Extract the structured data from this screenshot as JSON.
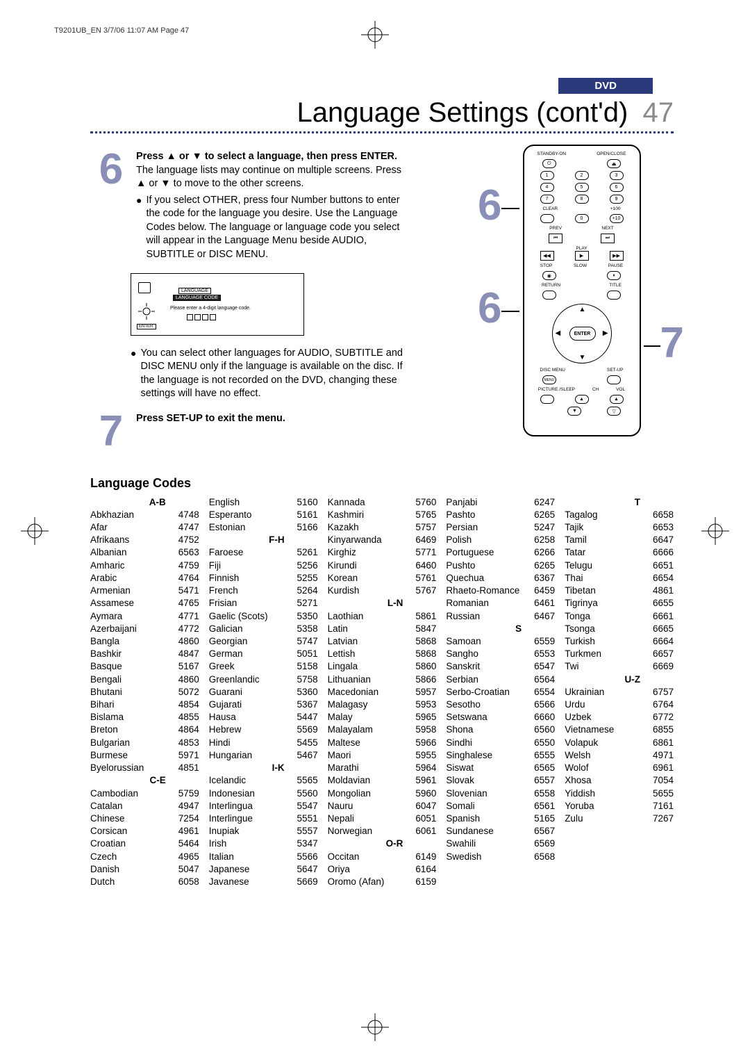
{
  "pageRef": "T9201UB_EN  3/7/06  11:07 AM  Page 47",
  "badge": "DVD",
  "title": "Language Settings (cont'd)",
  "pageNum": "47",
  "step6": {
    "num": "6",
    "lead_b": "Press ▲ or ▼ to select a language, then press ENTER.",
    "lead_rest": " The language lists may continue on multiple screens.  Press ▲ or ▼ to move to the other screens.",
    "bullet1": "If you select OTHER, press four Number buttons to enter the code for the language you desire. Use the Language Codes below.  The language or language code you select will appear in the Language Menu beside AUDIO, SUBTITLE or DISC MENU.",
    "diag_l1": "LANGUAGE",
    "diag_l2": "LANGUAGE CODE",
    "diag_instr": "Please enter a 4-digit language code.",
    "bullet2": "You can select other languages for AUDIO, SUBTITLE and DISC MENU only if the language is available on the disc.  If the language is not recorded on the DVD, changing these settings will have no effect."
  },
  "step7": {
    "num": "7",
    "text": "Press SET-UP to exit the menu."
  },
  "remote": {
    "r6": "6",
    "r7": "7",
    "standby": "STANDBY-ON",
    "openclose": "OPEN/CLOSE",
    "clear": "CLEAR",
    "plus100": "+100",
    "prev": "PREV",
    "next": "NEXT",
    "play": "PLAY",
    "stop": "STOP",
    "slow": "SLOW",
    "pause": "PAUSE",
    "return": "RETURN",
    "title": "TITLE",
    "enter": "ENTER",
    "disc": "DISC MENU",
    "setup": "SET-UP",
    "picture": "PICTURE /SLEEP",
    "ch": "CH",
    "vol": "VOL",
    "n1": "1",
    "n2": "2",
    "n3": "3",
    "n4": "4",
    "n5": "5",
    "n6": "6",
    "n7": "7",
    "n8": "8",
    "n9": "9",
    "n0": "0",
    "n10": "+10"
  },
  "codesTitle": "Language Codes",
  "cols": [
    {
      "sections": [
        {
          "hdr": "A-B",
          "rows": [
            [
              "Abkhazian",
              "4748"
            ],
            [
              "Afar",
              "4747"
            ],
            [
              "Afrikaans",
              "4752"
            ],
            [
              "Albanian",
              "6563"
            ],
            [
              "Amharic",
              "4759"
            ],
            [
              "Arabic",
              "4764"
            ],
            [
              "Armenian",
              "5471"
            ],
            [
              "Assamese",
              "4765"
            ],
            [
              "Aymara",
              "4771"
            ],
            [
              "Azerbaijani",
              "4772"
            ],
            [
              "Bangla",
              "4860"
            ],
            [
              "Bashkir",
              "4847"
            ],
            [
              "Basque",
              "5167"
            ],
            [
              "Bengali",
              "4860"
            ],
            [
              "Bhutani",
              "5072"
            ],
            [
              "Bihari",
              "4854"
            ],
            [
              "Bislama",
              "4855"
            ],
            [
              "Breton",
              "4864"
            ],
            [
              "Bulgarian",
              "4853"
            ],
            [
              "Burmese",
              "5971"
            ],
            [
              "Byelorussian",
              "4851"
            ]
          ]
        },
        {
          "hdr": "C-E",
          "rows": [
            [
              "Cambodian",
              "5759"
            ],
            [
              "Catalan",
              "4947"
            ],
            [
              "Chinese",
              "7254"
            ],
            [
              "Corsican",
              "4961"
            ],
            [
              "Croatian",
              "5464"
            ],
            [
              "Czech",
              "4965"
            ],
            [
              "Danish",
              "5047"
            ],
            [
              "Dutch",
              "6058"
            ]
          ]
        }
      ]
    },
    {
      "sections": [
        {
          "hdr": "",
          "rows": [
            [
              "English",
              "5160"
            ],
            [
              "Esperanto",
              "5161"
            ],
            [
              "Estonian",
              "5166"
            ]
          ]
        },
        {
          "hdr": "F-H",
          "rows": [
            [
              "Faroese",
              "5261"
            ],
            [
              "Fiji",
              "5256"
            ],
            [
              "Finnish",
              "5255"
            ],
            [
              "French",
              "5264"
            ],
            [
              "Frisian",
              "5271"
            ],
            [
              "Gaelic (Scots)",
              "5350"
            ],
            [
              "Galician",
              "5358"
            ],
            [
              "Georgian",
              "5747"
            ],
            [
              "German",
              "5051"
            ],
            [
              "Greek",
              "5158"
            ],
            [
              "Greenlandic",
              "5758"
            ],
            [
              "Guarani",
              "5360"
            ],
            [
              "Gujarati",
              "5367"
            ],
            [
              "Hausa",
              "5447"
            ],
            [
              "Hebrew",
              "5569"
            ],
            [
              "Hindi",
              "5455"
            ],
            [
              "Hungarian",
              "5467"
            ]
          ]
        },
        {
          "hdr": "I-K",
          "rows": [
            [
              "Icelandic",
              "5565"
            ],
            [
              "Indonesian",
              "5560"
            ],
            [
              "Interlingua",
              "5547"
            ],
            [
              "Interlingue",
              "5551"
            ],
            [
              "Inupiak",
              "5557"
            ],
            [
              "Irish",
              "5347"
            ],
            [
              "Italian",
              "5566"
            ],
            [
              "Japanese",
              "5647"
            ],
            [
              "Javanese",
              "5669"
            ]
          ]
        }
      ]
    },
    {
      "sections": [
        {
          "hdr": "",
          "rows": [
            [
              "Kannada",
              "5760"
            ],
            [
              "Kashmiri",
              "5765"
            ],
            [
              "Kazakh",
              "5757"
            ],
            [
              "Kinyarwanda",
              "6469"
            ],
            [
              "Kirghiz",
              "5771"
            ],
            [
              "Kirundi",
              "6460"
            ],
            [
              "Korean",
              "5761"
            ],
            [
              "Kurdish",
              "5767"
            ]
          ]
        },
        {
          "hdr": "L-N",
          "rows": [
            [
              "Laothian",
              "5861"
            ],
            [
              "Latin",
              "5847"
            ],
            [
              "Latvian",
              "5868"
            ],
            [
              "Lettish",
              "5868"
            ],
            [
              "Lingala",
              "5860"
            ],
            [
              "Lithuanian",
              "5866"
            ],
            [
              "Macedonian",
              "5957"
            ],
            [
              "Malagasy",
              "5953"
            ],
            [
              "Malay",
              "5965"
            ],
            [
              "Malayalam",
              "5958"
            ],
            [
              "Maltese",
              "5966"
            ],
            [
              "Maori",
              "5955"
            ],
            [
              "Marathi",
              "5964"
            ],
            [
              "Moldavian",
              "5961"
            ],
            [
              "Mongolian",
              "5960"
            ],
            [
              "Nauru",
              "6047"
            ],
            [
              "Nepali",
              "6051"
            ],
            [
              "Norwegian",
              "6061"
            ]
          ]
        },
        {
          "hdr": "O-R",
          "rows": [
            [
              "Occitan",
              "6149"
            ],
            [
              "Oriya",
              "6164"
            ],
            [
              "Oromo (Afan)",
              "6159"
            ]
          ]
        }
      ]
    },
    {
      "sections": [
        {
          "hdr": "",
          "rows": [
            [
              "Panjabi",
              "6247"
            ],
            [
              "Pashto",
              "6265"
            ],
            [
              "Persian",
              "5247"
            ],
            [
              "Polish",
              "6258"
            ],
            [
              "Portuguese",
              "6266"
            ],
            [
              "Pushto",
              "6265"
            ],
            [
              "Quechua",
              "6367"
            ],
            [
              "Rhaeto-Romance",
              "6459"
            ],
            [
              "Romanian",
              "6461"
            ],
            [
              "Russian",
              "6467"
            ]
          ]
        },
        {
          "hdr": "S",
          "rows": [
            [
              "Samoan",
              "6559"
            ],
            [
              "Sangho",
              "6553"
            ],
            [
              "Sanskrit",
              "6547"
            ],
            [
              "Serbian",
              "6564"
            ],
            [
              "Serbo-Croatian",
              "6554"
            ],
            [
              "Sesotho",
              "6566"
            ],
            [
              "Setswana",
              "6660"
            ],
            [
              "Shona",
              "6560"
            ],
            [
              "Sindhi",
              "6550"
            ],
            [
              "Singhalese",
              "6555"
            ],
            [
              "Siswat",
              "6565"
            ],
            [
              "Slovak",
              "6557"
            ],
            [
              "Slovenian",
              "6558"
            ],
            [
              "Somali",
              "6561"
            ],
            [
              "Spanish",
              "5165"
            ],
            [
              "Sundanese",
              "6567"
            ],
            [
              "Swahili",
              "6569"
            ],
            [
              "Swedish",
              "6568"
            ]
          ]
        }
      ]
    },
    {
      "sections": [
        {
          "hdr": "T",
          "rows": [
            [
              "Tagalog",
              "6658"
            ],
            [
              "Tajik",
              "6653"
            ],
            [
              "Tamil",
              "6647"
            ],
            [
              "Tatar",
              "6666"
            ],
            [
              "Telugu",
              "6651"
            ],
            [
              "Thai",
              "6654"
            ],
            [
              "Tibetan",
              "4861"
            ],
            [
              "Tigrinya",
              "6655"
            ],
            [
              "Tonga",
              "6661"
            ],
            [
              "Tsonga",
              "6665"
            ],
            [
              "Turkish",
              "6664"
            ],
            [
              "Turkmen",
              "6657"
            ],
            [
              "Twi",
              "6669"
            ]
          ]
        },
        {
          "hdr": "U-Z",
          "rows": [
            [
              "Ukrainian",
              "6757"
            ],
            [
              "Urdu",
              "6764"
            ],
            [
              "Uzbek",
              "6772"
            ],
            [
              "Vietnamese",
              "6855"
            ],
            [
              "Volapuk",
              "6861"
            ],
            [
              "Welsh",
              "4971"
            ],
            [
              "Wolof",
              "6961"
            ],
            [
              "Xhosa",
              "7054"
            ],
            [
              "Yiddish",
              "5655"
            ],
            [
              "Yoruba",
              "7161"
            ],
            [
              "Zulu",
              "7267"
            ]
          ]
        }
      ]
    }
  ]
}
